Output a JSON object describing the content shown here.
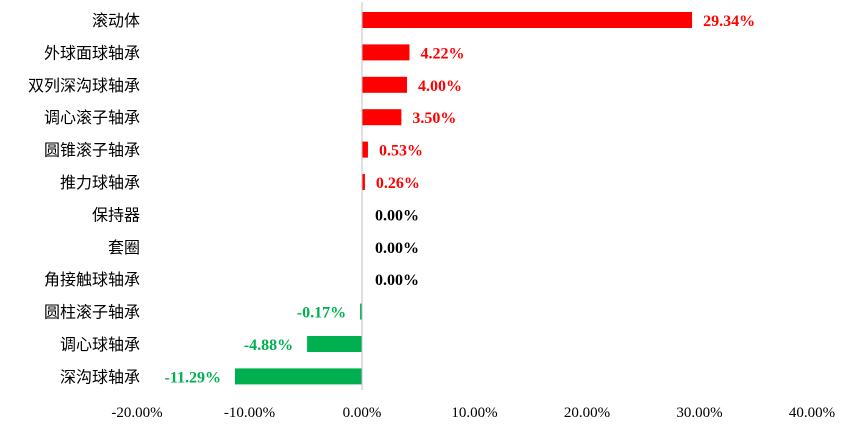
{
  "chart_data": {
    "type": "bar",
    "orientation": "horizontal",
    "title": "",
    "xlabel": "",
    "ylabel": "",
    "xlim": [
      -20,
      40
    ],
    "grid": false,
    "legend": "none",
    "categories": [
      "滚动体",
      "外球面球轴承",
      "双列深沟球轴承",
      "调心滚子轴承",
      "圆锥滚子轴承",
      "推力球轴承",
      "保持器",
      "套圈",
      "角接触球轴承",
      "圆柱滚子轴承",
      "调心球轴承",
      "深沟球轴承"
    ],
    "values": [
      29.34,
      4.22,
      4.0,
      3.5,
      0.53,
      0.26,
      0.0,
      0.0,
      0.0,
      -0.17,
      -4.88,
      -11.29
    ],
    "value_labels": [
      "29.34%",
      "4.22%",
      "4.00%",
      "3.50%",
      "0.53%",
      "0.26%",
      "0.00%",
      "0.00%",
      "0.00%",
      "-0.17%",
      "-4.88%",
      "-11.29%"
    ],
    "x_ticks": [
      -20,
      -10,
      0,
      10,
      20,
      30,
      40
    ],
    "x_tick_labels": [
      "-20.00%",
      "-10.00%",
      "0.00%",
      "10.00%",
      "20.00%",
      "30.00%",
      "40.00%"
    ],
    "colors": {
      "positive": "#ff0000",
      "negative": "#00b050",
      "zero_label": "#000000",
      "axis": "#bfbfbf"
    }
  }
}
